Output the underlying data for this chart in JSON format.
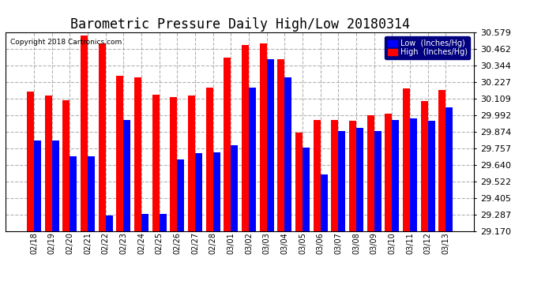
{
  "title": "Barometric Pressure Daily High/Low 20180314",
  "copyright": "Copyright 2018 Cartronics.com",
  "legend_labels": [
    "Low  (Inches/Hg)",
    "High  (Inches/Hg)"
  ],
  "dates": [
    "02/18",
    "02/19",
    "02/20",
    "02/21",
    "02/22",
    "02/23",
    "02/24",
    "02/25",
    "02/26",
    "02/27",
    "02/28",
    "03/01",
    "03/02",
    "03/03",
    "03/04",
    "03/05",
    "03/06",
    "03/07",
    "03/08",
    "03/09",
    "03/10",
    "03/11",
    "03/12",
    "03/13"
  ],
  "high": [
    30.16,
    30.13,
    30.1,
    30.56,
    30.5,
    30.27,
    30.26,
    30.14,
    30.12,
    30.13,
    30.19,
    30.4,
    30.49,
    30.5,
    30.39,
    29.87,
    29.96,
    29.96,
    29.95,
    29.99,
    30.0,
    30.18,
    30.09,
    30.17
  ],
  "low": [
    29.81,
    29.81,
    29.7,
    29.7,
    29.28,
    29.96,
    29.29,
    29.29,
    29.68,
    29.72,
    29.73,
    29.78,
    30.19,
    30.39,
    30.26,
    29.76,
    29.57,
    29.88,
    29.9,
    29.88,
    29.96,
    29.97,
    29.95,
    30.05
  ],
  "ylim_min": 29.17,
  "ylim_max": 30.579,
  "yticks": [
    29.17,
    29.287,
    29.405,
    29.522,
    29.64,
    29.757,
    29.874,
    29.992,
    30.109,
    30.227,
    30.344,
    30.462,
    30.579
  ],
  "bg_color": "#ffffff",
  "bar_width": 0.4,
  "title_fontsize": 12,
  "tick_fontsize": 8,
  "fig_width": 6.9,
  "fig_height": 3.75
}
